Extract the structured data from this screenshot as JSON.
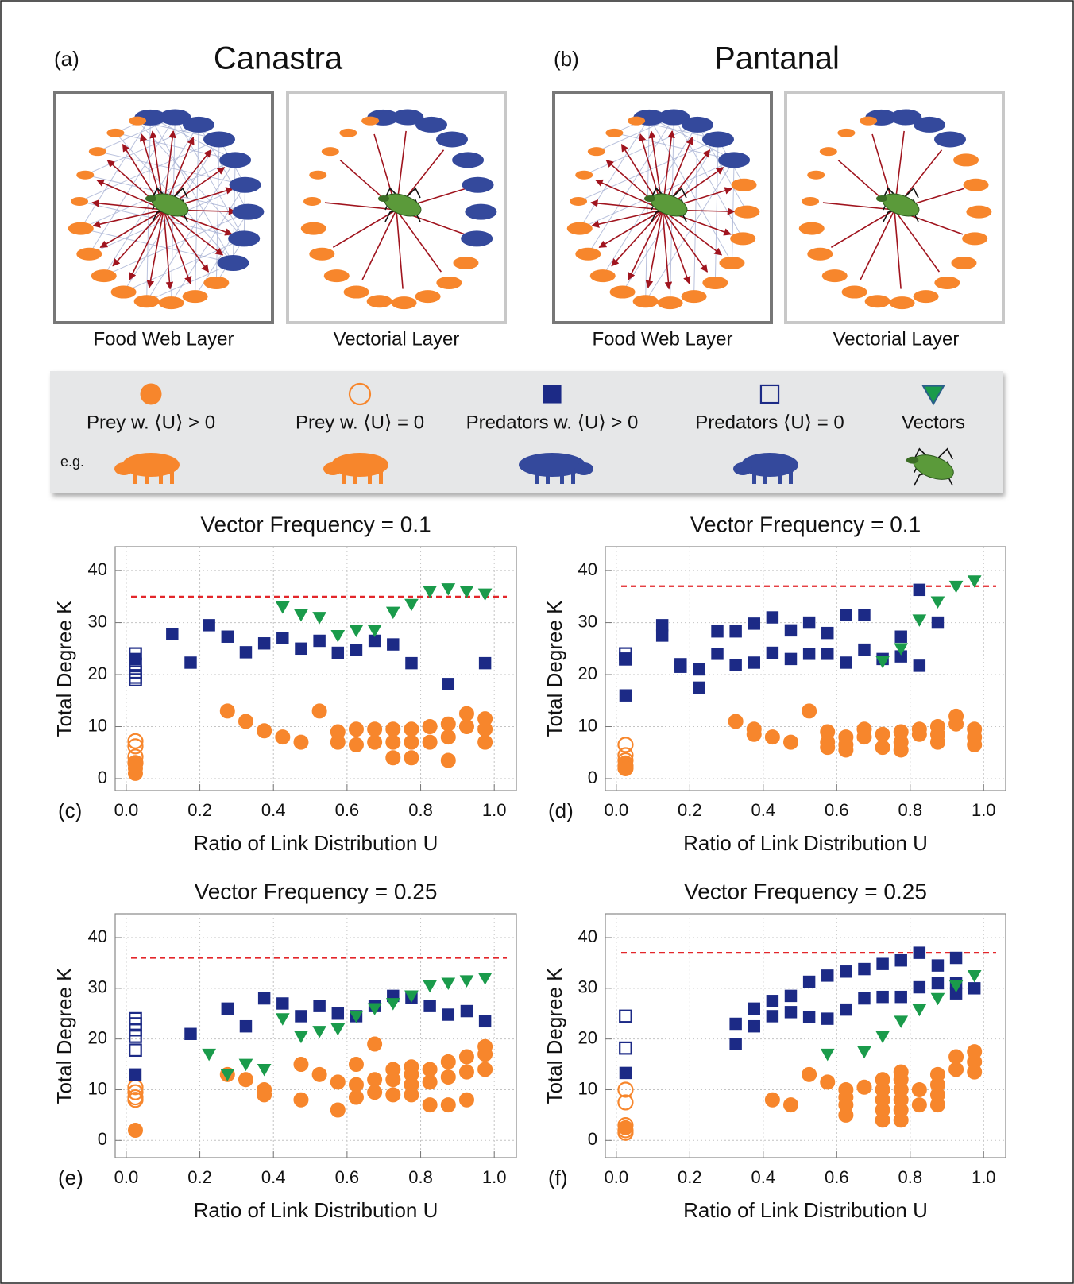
{
  "header": {
    "panels": [
      {
        "label": "(a)",
        "title": "Canastra",
        "layers": [
          "Food Web Layer",
          "Vectorial Layer"
        ]
      },
      {
        "label": "(b)",
        "title": "Pantanal",
        "layers": [
          "Food Web Layer",
          "Vectorial Layer"
        ]
      }
    ]
  },
  "legend": {
    "example_label": "e.g.",
    "entries": [
      {
        "label": "Prey w. ⟨U⟩ > 0",
        "marker": "circle",
        "filled": true,
        "color": "#f7862c"
      },
      {
        "label": "Prey w. ⟨U⟩ = 0",
        "marker": "circle",
        "filled": false,
        "color": "#f7862c"
      },
      {
        "label": "Predators w. ⟨U⟩ > 0",
        "marker": "square",
        "filled": true,
        "color": "#1c2a86"
      },
      {
        "label": "Predators ⟨U⟩ = 0",
        "marker": "square",
        "filled": false,
        "color": "#1c2a86"
      },
      {
        "label": "Vectors",
        "marker": "triangle",
        "filled": true,
        "color": "#1a9b4b"
      }
    ]
  },
  "chart_data": [
    {
      "type": "scatter",
      "panel": "(c)",
      "title": "Vector Frequency = 0.1",
      "xlabel": "Ratio of Link Distribution U",
      "ylabel": "Total Degree K",
      "xlim": [
        -0.03,
        1.06
      ],
      "ylim": [
        -2.3,
        44.6
      ],
      "xticks": [
        {
          "value": 0,
          "label": "0.0"
        },
        0.2,
        0.4,
        0.6,
        0.8,
        {
          "value": 1,
          "label": "1.0"
        }
      ],
      "yticks": [
        0,
        10,
        20,
        30,
        40
      ],
      "grid": true,
      "reference_line": {
        "value": 35,
        "color": "#e3262a"
      },
      "series": [
        {
          "marker": "circle",
          "filled": false,
          "color": "#f7862c",
          "x": [
            0.025,
            0.025,
            0.025,
            0.025
          ],
          "values": [
            7.2,
            6.2,
            4.2,
            3
          ]
        },
        {
          "marker": "circle",
          "filled": true,
          "color": "#f7862c",
          "x": [
            0.025,
            0.025,
            0.025,
            0.275,
            0.325,
            0.375,
            0.425,
            0.475,
            0.525,
            0.575,
            0.575,
            0.625,
            0.625,
            0.675,
            0.675,
            0.725,
            0.725,
            0.725,
            0.775,
            0.775,
            0.775,
            0.825,
            0.825,
            0.875,
            0.875,
            0.875,
            0.925,
            0.925,
            0.975,
            0.975,
            0.975
          ],
          "values": [
            1,
            2,
            3,
            13,
            11,
            9.2,
            8,
            7,
            13,
            9,
            7,
            9.5,
            6.5,
            9.5,
            7,
            9.5,
            7,
            4,
            9.5,
            7,
            4,
            10,
            7,
            10.5,
            8,
            3.5,
            12.5,
            10,
            11.5,
            9.5,
            7
          ]
        },
        {
          "marker": "square",
          "filled": false,
          "color": "#1c2a86",
          "x": [
            0.025,
            0.025,
            0.025,
            0.025,
            0.025
          ],
          "values": [
            24,
            22,
            20.5,
            19.5,
            19
          ]
        },
        {
          "marker": "square",
          "filled": true,
          "color": "#1c2a86",
          "x": [
            0.025,
            0.125,
            0.175,
            0.225,
            0.275,
            0.325,
            0.375,
            0.425,
            0.475,
            0.525,
            0.575,
            0.625,
            0.675,
            0.725,
            0.775,
            0.875,
            0.975
          ],
          "values": [
            23,
            27.8,
            22.3,
            29.5,
            27.3,
            24.3,
            26,
            27,
            25,
            26.5,
            24.2,
            24.7,
            26.5,
            25.8,
            22.2,
            18.2,
            22.2
          ]
        },
        {
          "marker": "triangle",
          "filled": true,
          "color": "#1a9b4b",
          "x": [
            0.425,
            0.475,
            0.525,
            0.575,
            0.625,
            0.675,
            0.725,
            0.775,
            0.825,
            0.875,
            0.925,
            0.975
          ],
          "values": [
            33,
            31.5,
            31,
            27.5,
            28.5,
            28.5,
            32,
            33.5,
            36,
            36.5,
            36,
            35.5
          ]
        }
      ]
    },
    {
      "type": "scatter",
      "panel": "(d)",
      "title": "Vector Frequency = 0.1",
      "xlabel": "Ratio of Link Distribution U",
      "ylabel": "Total Degree K",
      "xlim": [
        -0.03,
        1.06
      ],
      "ylim": [
        -2.3,
        44.6
      ],
      "xticks": [
        {
          "value": 0,
          "label": "0.0"
        },
        0.2,
        0.4,
        0.6,
        0.8,
        {
          "value": 1,
          "label": "1.0"
        }
      ],
      "yticks": [
        0,
        10,
        20,
        30,
        40
      ],
      "grid": true,
      "reference_line": {
        "value": 37,
        "color": "#e3262a"
      },
      "series": [
        {
          "marker": "circle",
          "filled": false,
          "color": "#f7862c",
          "x": [
            0.025,
            0.025,
            0.025,
            0.025,
            0.025
          ],
          "values": [
            6.5,
            4.5,
            3.5,
            2.5,
            2
          ]
        },
        {
          "marker": "circle",
          "filled": true,
          "color": "#f7862c",
          "x": [
            0.025,
            0.025,
            0.325,
            0.375,
            0.375,
            0.425,
            0.475,
            0.525,
            0.575,
            0.575,
            0.575,
            0.625,
            0.625,
            0.625,
            0.675,
            0.675,
            0.725,
            0.725,
            0.775,
            0.775,
            0.775,
            0.825,
            0.825,
            0.875,
            0.875,
            0.875,
            0.925,
            0.925,
            0.975,
            0.975,
            0.975
          ],
          "values": [
            3,
            2,
            11,
            9.5,
            8.5,
            8,
            7,
            13,
            9,
            7,
            6,
            8,
            6.5,
            5.5,
            9.5,
            8,
            8.5,
            6,
            9,
            7,
            5.5,
            9.5,
            8.5,
            10,
            8.5,
            7,
            12,
            10.5,
            9.5,
            8,
            6.5
          ]
        },
        {
          "marker": "square",
          "filled": false,
          "color": "#1c2a86",
          "x": [
            0.025,
            0.025
          ],
          "values": [
            24,
            23
          ]
        },
        {
          "marker": "square",
          "filled": true,
          "color": "#1c2a86",
          "x": [
            0.025,
            0.025,
            0.125,
            0.125,
            0.175,
            0.175,
            0.225,
            0.225,
            0.275,
            0.275,
            0.325,
            0.325,
            0.375,
            0.375,
            0.425,
            0.425,
            0.475,
            0.475,
            0.525,
            0.525,
            0.575,
            0.575,
            0.625,
            0.625,
            0.675,
            0.675,
            0.725,
            0.775,
            0.775,
            0.825,
            0.825,
            0.875
          ],
          "values": [
            23,
            16,
            29.5,
            27.5,
            22,
            21.5,
            21,
            17.5,
            28.3,
            24,
            28.3,
            21.8,
            29.8,
            22.3,
            31,
            24.2,
            28.5,
            23,
            30,
            24,
            28,
            24,
            31.5,
            22.3,
            31.5,
            24.8,
            23,
            27.3,
            23.5,
            36.3,
            21.7,
            30
          ]
        },
        {
          "marker": "triangle",
          "filled": true,
          "color": "#1a9b4b",
          "x": [
            0.725,
            0.775,
            0.825,
            0.875,
            0.925,
            0.975
          ],
          "values": [
            22.5,
            25,
            30.5,
            34,
            37,
            38
          ]
        }
      ]
    },
    {
      "type": "scatter",
      "panel": "(e)",
      "title": "Vector Frequency = 0.25",
      "xlabel": "Ratio of Link Distribution U",
      "ylabel": "Total Degree K",
      "xlim": [
        -0.03,
        1.06
      ],
      "ylim": [
        -3.4,
        44.7
      ],
      "xticks": [
        {
          "value": 0,
          "label": "0.0"
        },
        0.2,
        0.4,
        0.6,
        0.8,
        {
          "value": 1,
          "label": "1.0"
        }
      ],
      "yticks": [
        0,
        10,
        20,
        30,
        40
      ],
      "grid": true,
      "reference_line": {
        "value": 36,
        "color": "#e3262a"
      },
      "series": [
        {
          "marker": "circle",
          "filled": false,
          "color": "#f7862c",
          "x": [
            0.025,
            0.025,
            0.025,
            0.025
          ],
          "values": [
            10.5,
            9.5,
            8.5,
            8
          ]
        },
        {
          "marker": "circle",
          "filled": true,
          "color": "#f7862c",
          "x": [
            0.025,
            0.275,
            0.325,
            0.375,
            0.375,
            0.475,
            0.475,
            0.525,
            0.575,
            0.575,
            0.625,
            0.625,
            0.625,
            0.675,
            0.675,
            0.675,
            0.725,
            0.725,
            0.725,
            0.775,
            0.775,
            0.775,
            0.775,
            0.825,
            0.825,
            0.825,
            0.875,
            0.875,
            0.875,
            0.925,
            0.925,
            0.925,
            0.975,
            0.975,
            0.975
          ],
          "values": [
            2,
            13,
            12,
            10,
            9,
            15,
            8,
            13,
            11.5,
            6,
            15,
            11,
            8.5,
            19,
            12,
            9.5,
            14,
            12,
            9,
            14.5,
            13,
            11,
            9,
            14,
            11.5,
            7,
            15.5,
            12.5,
            7,
            16.5,
            13.5,
            8,
            18.5,
            17,
            14
          ]
        },
        {
          "marker": "square",
          "filled": false,
          "color": "#1c2a86",
          "x": [
            0.025,
            0.025,
            0.025,
            0.025,
            0.025
          ],
          "values": [
            24,
            23,
            21.8,
            20.5,
            17.8
          ]
        },
        {
          "marker": "square",
          "filled": true,
          "color": "#1c2a86",
          "x": [
            0.025,
            0.175,
            0.275,
            0.325,
            0.375,
            0.425,
            0.475,
            0.525,
            0.575,
            0.625,
            0.675,
            0.725,
            0.775,
            0.825,
            0.875,
            0.925,
            0.975
          ],
          "values": [
            13,
            21,
            26,
            22.5,
            28,
            27,
            24.5,
            26.5,
            25,
            24.5,
            26.5,
            28.5,
            28.2,
            26.5,
            24.8,
            25.5,
            23.5
          ]
        },
        {
          "marker": "triangle",
          "filled": true,
          "color": "#1a9b4b",
          "x": [
            0.225,
            0.275,
            0.325,
            0.375,
            0.425,
            0.475,
            0.525,
            0.575,
            0.625,
            0.675,
            0.725,
            0.775,
            0.825,
            0.875,
            0.925,
            0.975
          ],
          "values": [
            17,
            13,
            15,
            14,
            24,
            20.5,
            21.5,
            22,
            24.5,
            26,
            27,
            28.5,
            30.5,
            31,
            31.5,
            32
          ]
        }
      ]
    },
    {
      "type": "scatter",
      "panel": "(f)",
      "title": "Vector Frequency = 0.25",
      "xlabel": "Ratio of Link Distribution U",
      "ylabel": "Total Degree K",
      "xlim": [
        -0.03,
        1.06
      ],
      "ylim": [
        -3.4,
        44.7
      ],
      "xticks": [
        {
          "value": 0,
          "label": "0.0"
        },
        0.2,
        0.4,
        0.6,
        0.8,
        {
          "value": 1,
          "label": "1.0"
        }
      ],
      "yticks": [
        0,
        10,
        20,
        30,
        40
      ],
      "grid": true,
      "reference_line": {
        "value": 37,
        "color": "#e3262a"
      },
      "series": [
        {
          "marker": "circle",
          "filled": false,
          "color": "#f7862c",
          "x": [
            0.025,
            0.025,
            0.025,
            0.025,
            0.025
          ],
          "values": [
            10,
            7.5,
            3,
            2,
            1.5
          ]
        },
        {
          "marker": "circle",
          "filled": true,
          "color": "#f7862c",
          "x": [
            0.025,
            0.425,
            0.475,
            0.525,
            0.575,
            0.625,
            0.625,
            0.625,
            0.625,
            0.675,
            0.725,
            0.725,
            0.725,
            0.725,
            0.725,
            0.775,
            0.775,
            0.775,
            0.775,
            0.775,
            0.775,
            0.825,
            0.825,
            0.875,
            0.875,
            0.875,
            0.875,
            0.925,
            0.925,
            0.975,
            0.975,
            0.975
          ],
          "values": [
            2.5,
            8,
            7,
            13,
            11.5,
            10,
            8.5,
            7,
            5,
            10.5,
            12,
            10,
            8,
            6,
            4,
            13.5,
            12,
            10,
            8,
            6,
            4,
            10,
            7,
            13,
            11,
            9,
            7,
            16.5,
            14,
            17.5,
            15.5,
            13.5
          ]
        },
        {
          "marker": "square",
          "filled": false,
          "color": "#1c2a86",
          "x": [
            0.025,
            0.025
          ],
          "values": [
            24.5,
            18.2
          ]
        },
        {
          "marker": "square",
          "filled": true,
          "color": "#1c2a86",
          "x": [
            0.025,
            0.325,
            0.325,
            0.375,
            0.375,
            0.425,
            0.425,
            0.475,
            0.475,
            0.525,
            0.525,
            0.575,
            0.575,
            0.625,
            0.625,
            0.675,
            0.675,
            0.725,
            0.725,
            0.775,
            0.775,
            0.825,
            0.825,
            0.875,
            0.875,
            0.925,
            0.925,
            0.925,
            0.975
          ],
          "values": [
            13.3,
            23,
            19,
            26,
            22.5,
            27.5,
            24.5,
            28.5,
            25.3,
            31.3,
            24.3,
            32.5,
            24,
            33.3,
            25.8,
            33.8,
            28,
            34.8,
            28.3,
            35.5,
            28.3,
            37,
            30.2,
            34.5,
            31,
            36,
            31,
            29,
            30
          ]
        },
        {
          "marker": "triangle",
          "filled": true,
          "color": "#1a9b4b",
          "x": [
            0.575,
            0.675,
            0.725,
            0.775,
            0.825,
            0.875,
            0.925,
            0.975
          ],
          "values": [
            17,
            17.5,
            20.5,
            23.5,
            25.8,
            28,
            30.5,
            32.5
          ]
        }
      ]
    }
  ]
}
